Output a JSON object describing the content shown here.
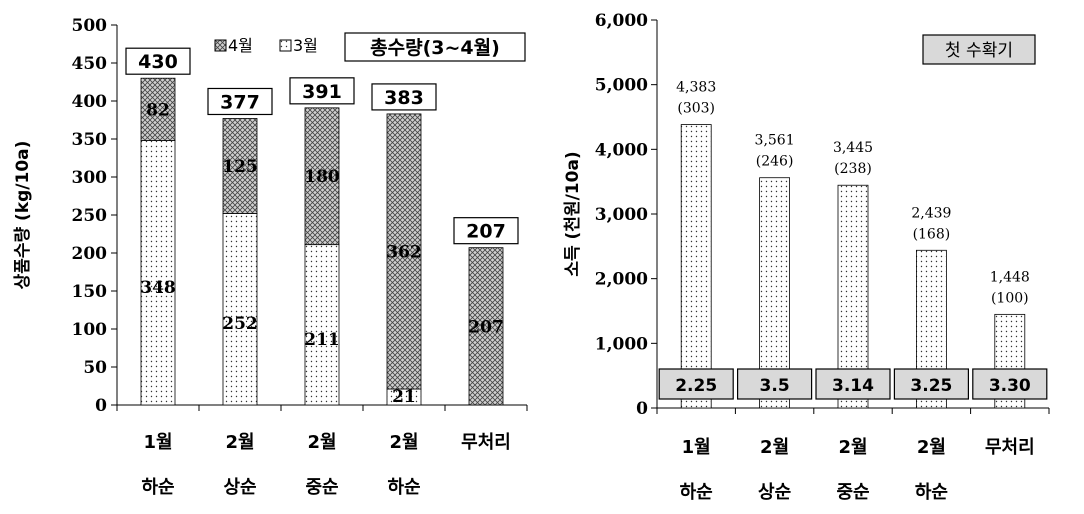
{
  "chart_data": [
    {
      "type": "bar",
      "stacked": true,
      "ylabel": "상품수량 (kg/10a)",
      "ylim": [
        0,
        500
      ],
      "yticks": [
        0,
        50,
        100,
        150,
        200,
        250,
        300,
        350,
        400,
        450,
        500
      ],
      "categories": [
        [
          "1월",
          "하순"
        ],
        [
          "2월",
          "상순"
        ],
        [
          "2월",
          "중순"
        ],
        [
          "2월",
          "하순"
        ],
        [
          "무처리"
        ]
      ],
      "series": [
        {
          "name": "3월",
          "pattern": "dots",
          "values": [
            348,
            252,
            211,
            21,
            0
          ],
          "labels": [
            "348",
            "252",
            "211",
            "21",
            ""
          ]
        },
        {
          "name": "4월",
          "pattern": "crosshatch",
          "values": [
            82,
            125,
            180,
            362,
            207
          ],
          "labels": [
            "82",
            "125",
            "180",
            "362",
            "207"
          ]
        }
      ],
      "totals": [
        "430",
        "377",
        "391",
        "383",
        "207"
      ],
      "legend": {
        "items": [
          "4월",
          "3월"
        ],
        "position": "top"
      },
      "badge": "총수량(3~4월)"
    },
    {
      "type": "bar",
      "ylabel": "소득 (천원/10a)",
      "ylim": [
        0,
        6000
      ],
      "yticks": [
        "0",
        "1,000",
        "2,000",
        "3,000",
        "4,000",
        "5,000",
        "6,000"
      ],
      "categories": [
        [
          "1월",
          "하순"
        ],
        [
          "2월",
          "상순"
        ],
        [
          "2월",
          "중순"
        ],
        [
          "2월",
          "하순"
        ],
        [
          "무처리"
        ]
      ],
      "values": [
        4383,
        3561,
        3445,
        2439,
        1448
      ],
      "value_labels": [
        "4,383",
        "3,561",
        "3,445",
        "2,439",
        "1,448"
      ],
      "index_labels": [
        "(303)",
        "(246)",
        "(238)",
        "(168)",
        "(100)"
      ],
      "bottom_boxes": [
        "2.25",
        "3.5",
        "3.14",
        "3.25",
        "3.30"
      ],
      "badge": "첫 수확기"
    }
  ]
}
